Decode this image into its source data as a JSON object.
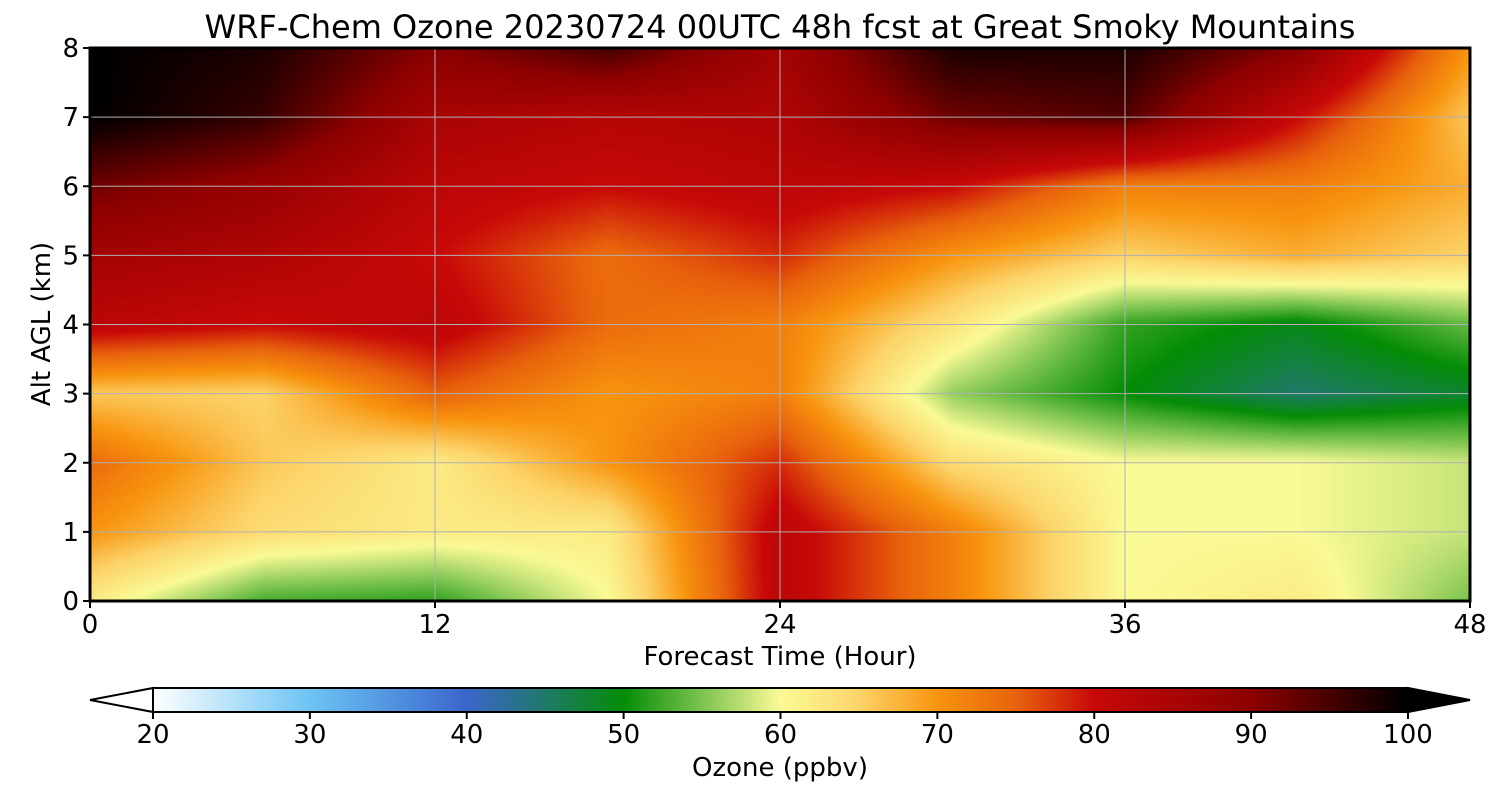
{
  "chart_data": {
    "type": "heatmap",
    "title": "WRF-Chem Ozone  20230724 00UTC 48h fcst at Great Smoky Mountains",
    "xlabel": "Forecast Time (Hour)",
    "ylabel": "Alt AGL (km)",
    "xlim": [
      0,
      48
    ],
    "ylim": [
      0,
      8
    ],
    "x_ticks": [
      0,
      12,
      24,
      36,
      48
    ],
    "y_ticks": [
      0,
      1,
      2,
      3,
      4,
      5,
      6,
      7,
      8
    ],
    "grid": true,
    "x": [
      0,
      6,
      12,
      18,
      24,
      30,
      36,
      42,
      48
    ],
    "y": [
      0,
      1,
      2,
      3,
      4,
      5,
      6,
      7,
      8
    ],
    "z_unit": "ppbv",
    "z": [
      [
        62,
        53,
        52,
        60,
        82,
        72,
        60,
        62,
        55
      ],
      [
        70,
        64,
        62,
        62,
        82,
        72,
        60,
        60,
        58
      ],
      [
        74,
        66,
        62,
        70,
        78,
        64,
        60,
        60,
        58
      ],
      [
        66,
        65,
        75,
        70,
        72,
        56,
        50,
        45,
        48
      ],
      [
        82,
        80,
        82,
        74,
        72,
        63,
        52,
        49,
        54
      ],
      [
        86,
        84,
        80,
        74,
        78,
        70,
        65,
        68,
        65
      ],
      [
        92,
        88,
        82,
        80,
        82,
        80,
        72,
        72,
        68
      ],
      [
        100,
        96,
        85,
        83,
        84,
        92,
        94,
        80,
        66
      ],
      [
        100,
        98,
        90,
        95,
        86,
        98,
        98,
        90,
        70
      ]
    ],
    "colorbar": {
      "label": "Ozone  (ppbv)",
      "min": 20,
      "max": 100,
      "ticks": [
        20,
        30,
        40,
        50,
        60,
        70,
        80,
        90,
        100
      ],
      "extend": "both",
      "stops": [
        {
          "v": 20,
          "c": "#ffffff"
        },
        {
          "v": 30,
          "c": "#6cc4f4"
        },
        {
          "v": 40,
          "c": "#3a66cc"
        },
        {
          "v": 50,
          "c": "#048c06"
        },
        {
          "v": 55,
          "c": "#7cc450"
        },
        {
          "v": 60,
          "c": "#fafa96"
        },
        {
          "v": 65,
          "c": "#fcd46a"
        },
        {
          "v": 70,
          "c": "#f8940e"
        },
        {
          "v": 75,
          "c": "#e8620c"
        },
        {
          "v": 80,
          "c": "#c80808"
        },
        {
          "v": 90,
          "c": "#8c0000"
        },
        {
          "v": 100,
          "c": "#000000"
        }
      ]
    }
  }
}
